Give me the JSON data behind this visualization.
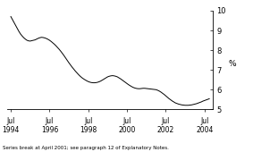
{
  "title": "",
  "ylabel": "%",
  "ylim": [
    5,
    10
  ],
  "yticks": [
    5,
    6,
    7,
    8,
    9,
    10
  ],
  "line_color": "#000000",
  "background_color": "#ffffff",
  "footnote": "Series break at April 2001; see paragraph 12 of Explanatory Notes.",
  "x": [
    0,
    1,
    2,
    3,
    4,
    5,
    6,
    7,
    8,
    9,
    10,
    11,
    12,
    13,
    14,
    15,
    16,
    17,
    18,
    19,
    20,
    21,
    22,
    23,
    24,
    25,
    26,
    27,
    28,
    29,
    30,
    31,
    32,
    33,
    34,
    35,
    36,
    37,
    38,
    39,
    40,
    41,
    42,
    43,
    44,
    45,
    46,
    47,
    48,
    49,
    50,
    51,
    52,
    53,
    54,
    55,
    56,
    57,
    58,
    59,
    60,
    61,
    62,
    63,
    64,
    65,
    66,
    67,
    68,
    69,
    70,
    71,
    72,
    73,
    74,
    75,
    76,
    77,
    78,
    79,
    80,
    81,
    82,
    83,
    84,
    85,
    86,
    87,
    88,
    89,
    90,
    91,
    92,
    93,
    94,
    95,
    96,
    97,
    98,
    99,
    100,
    101,
    102,
    103,
    104,
    105,
    106,
    107,
    108,
    109,
    110,
    111,
    112,
    113,
    114,
    115,
    116,
    117,
    118,
    119,
    120,
    121,
    122,
    123
  ],
  "y": [
    9.7,
    9.55,
    9.4,
    9.25,
    9.1,
    8.95,
    8.82,
    8.72,
    8.63,
    8.56,
    8.5,
    8.47,
    8.46,
    8.48,
    8.5,
    8.52,
    8.56,
    8.6,
    8.63,
    8.65,
    8.64,
    8.62,
    8.59,
    8.55,
    8.5,
    8.44,
    8.37,
    8.3,
    8.22,
    8.13,
    8.04,
    7.94,
    7.83,
    7.72,
    7.6,
    7.48,
    7.36,
    7.25,
    7.14,
    7.04,
    6.94,
    6.85,
    6.76,
    6.68,
    6.61,
    6.55,
    6.5,
    6.45,
    6.41,
    6.38,
    6.36,
    6.35,
    6.35,
    6.36,
    6.38,
    6.41,
    6.45,
    6.5,
    6.55,
    6.6,
    6.65,
    6.68,
    6.7,
    6.71,
    6.7,
    6.68,
    6.65,
    6.6,
    6.55,
    6.49,
    6.43,
    6.37,
    6.31,
    6.25,
    6.2,
    6.15,
    6.11,
    6.08,
    6.06,
    6.05,
    6.05,
    6.06,
    6.07,
    6.07,
    6.06,
    6.05,
    6.04,
    6.03,
    6.02,
    6.01,
    6.0,
    5.97,
    5.93,
    5.88,
    5.82,
    5.76,
    5.69,
    5.62,
    5.55,
    5.49,
    5.43,
    5.38,
    5.33,
    5.3,
    5.27,
    5.25,
    5.23,
    5.22,
    5.21,
    5.21,
    5.21,
    5.22,
    5.23,
    5.25,
    5.27,
    5.29,
    5.32,
    5.35,
    5.38,
    5.42,
    5.45,
    5.48,
    5.51,
    5.54
  ],
  "xlim": [
    -2,
    125
  ],
  "xtick_positions": [
    0,
    24,
    48,
    72,
    96,
    120
  ],
  "xtick_labels": [
    "Jul\n1994",
    "Jul\n1996",
    "Jul\n1998",
    "Jul\n2000",
    "Jul\n2002",
    "Jul\n2004"
  ]
}
